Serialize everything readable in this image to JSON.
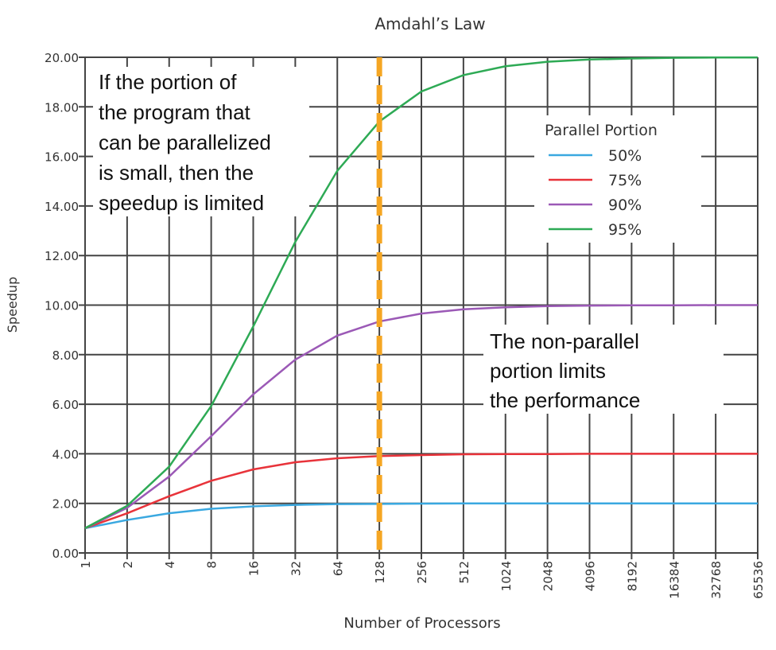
{
  "chart_data": {
    "type": "line",
    "title": "Amdahl’s Law",
    "xlabel": "Number of Processors",
    "ylabel": "Speedup",
    "x_scale": "log2",
    "x": [
      1,
      2,
      4,
      8,
      16,
      32,
      64,
      128,
      256,
      512,
      1024,
      2048,
      4096,
      8192,
      16384,
      32768,
      65536
    ],
    "ylim": [
      0,
      20
    ],
    "yticks": [
      "0.00",
      "2.00",
      "4.00",
      "6.00",
      "8.00",
      "10.00",
      "12.00",
      "14.00",
      "16.00",
      "18.00",
      "20.00"
    ],
    "grid": true,
    "legend": {
      "title": "Parallel Portion",
      "placement": "top-right"
    },
    "series": [
      {
        "name": "50%",
        "color": "#3aa8e0",
        "values": [
          1,
          1.33,
          1.6,
          1.78,
          1.88,
          1.94,
          1.97,
          1.98,
          1.99,
          2.0,
          2.0,
          2.0,
          2.0,
          2.0,
          2.0,
          2.0,
          2.0
        ]
      },
      {
        "name": "75%",
        "color": "#e8333a",
        "values": [
          1,
          1.6,
          2.29,
          2.91,
          3.37,
          3.66,
          3.82,
          3.91,
          3.95,
          3.98,
          3.99,
          3.99,
          4.0,
          4.0,
          4.0,
          4.0,
          4.0
        ]
      },
      {
        "name": "90%",
        "color": "#9b59b6",
        "values": [
          1,
          1.82,
          3.08,
          4.71,
          6.4,
          7.8,
          8.77,
          9.34,
          9.66,
          9.83,
          9.91,
          9.96,
          9.98,
          9.99,
          9.99,
          10.0,
          10.0
        ]
      },
      {
        "name": "95%",
        "color": "#2eaa55",
        "values": [
          1,
          1.9,
          3.48,
          5.93,
          9.14,
          12.55,
          15.42,
          17.41,
          18.62,
          19.28,
          19.64,
          19.82,
          19.91,
          19.95,
          19.98,
          19.99,
          19.99
        ]
      }
    ],
    "marker_line": {
      "x": 128,
      "color": "#f5a623",
      "style": "dashed"
    },
    "annotations": [
      {
        "lines": [
          "If the portion of",
          "the program that",
          "can be parallelized",
          "is small, then the",
          "speedup is limited"
        ]
      },
      {
        "lines": [
          "The non-parallel",
          "portion limits",
          "the performance"
        ]
      }
    ]
  }
}
